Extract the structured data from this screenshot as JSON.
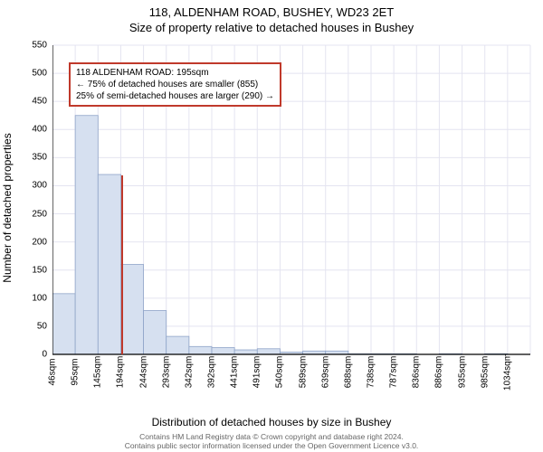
{
  "title_line1": "118, ALDENHAM ROAD, BUSHEY, WD23 2ET",
  "title_line2": "Size of property relative to detached houses in Bushey",
  "y_axis_label": "Number of detached properties",
  "x_axis_label": "Distribution of detached houses by size in Bushey",
  "footer_line1": "Contains HM Land Registry data © Crown copyright and database right 2024.",
  "footer_line2": "Contains public sector information licensed under the Open Government Licence v3.0.",
  "chart": {
    "type": "histogram",
    "background_color": "#ffffff",
    "grid_color": "#e4e4f0",
    "axis_color": "#000000",
    "bar_fill": "#d6e0f0",
    "bar_stroke": "#8fa4c8",
    "marker_color": "#c0392b",
    "ylim": [
      0,
      550
    ],
    "ytick_step": 50,
    "bin_width_sqm": 49,
    "bins_start": 46,
    "bins": [
      {
        "label": "46sqm",
        "value": 108
      },
      {
        "label": "95sqm",
        "value": 425
      },
      {
        "label": "145sqm",
        "value": 320
      },
      {
        "label": "194sqm",
        "value": 160
      },
      {
        "label": "244sqm",
        "value": 78
      },
      {
        "label": "293sqm",
        "value": 32
      },
      {
        "label": "342sqm",
        "value": 14
      },
      {
        "label": "392sqm",
        "value": 12
      },
      {
        "label": "441sqm",
        "value": 8
      },
      {
        "label": "491sqm",
        "value": 10
      },
      {
        "label": "540sqm",
        "value": 4
      },
      {
        "label": "589sqm",
        "value": 6
      },
      {
        "label": "639sqm",
        "value": 6
      },
      {
        "label": "688sqm",
        "value": 1
      },
      {
        "label": "738sqm",
        "value": 1
      },
      {
        "label": "787sqm",
        "value": 1
      },
      {
        "label": "836sqm",
        "value": 0
      },
      {
        "label": "886sqm",
        "value": 1
      },
      {
        "label": "935sqm",
        "value": 0
      },
      {
        "label": "985sqm",
        "value": 1
      },
      {
        "label": "1034sqm",
        "value": 0
      }
    ],
    "marker_sqm": 195,
    "callout": {
      "line1": "118 ALDENHAM ROAD: 195sqm",
      "line2": "← 75% of detached houses are smaller (855)",
      "line3": "25% of semi-detached houses are larger (290) →"
    }
  }
}
